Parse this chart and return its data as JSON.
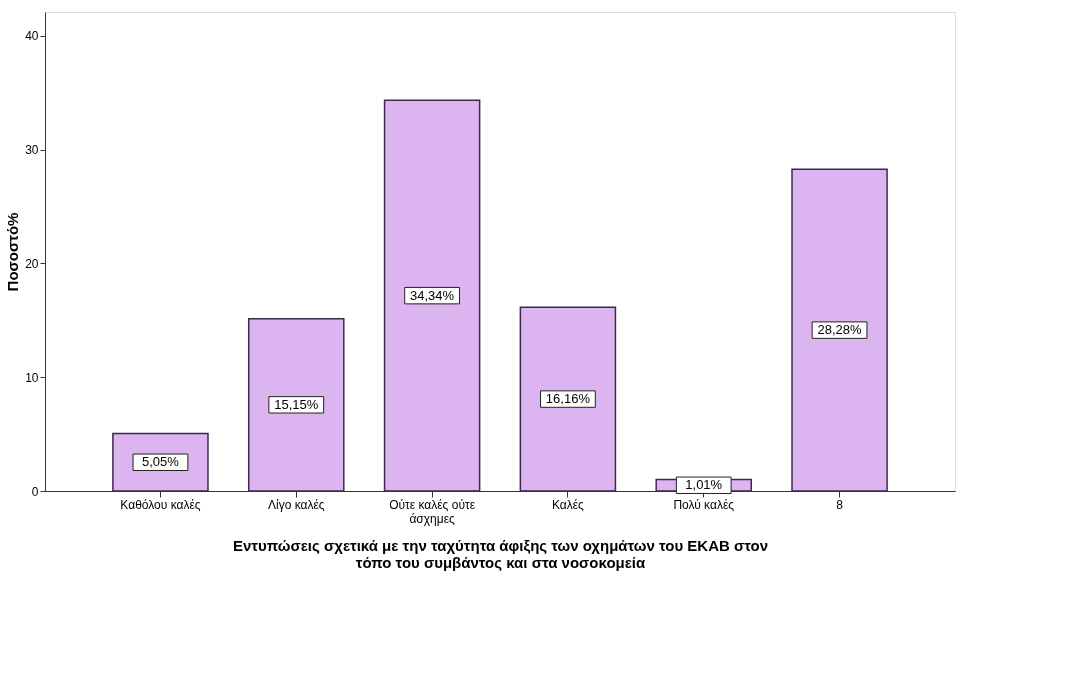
{
  "chart_data": {
    "type": "bar",
    "xlabel": "Εντυπώσεις σχετικά με την ταχύτητα άφιξης των οχημάτων του ΕΚΑΒ στον τόπο του συμβάντος και στα νοσοκομεία",
    "ylabel": "Ποσοστό%",
    "categories": [
      "Καθόλου καλές",
      "Λίγο καλές",
      "Ούτε καλές ούτε άσχημες",
      "Καλές",
      "Πολύ καλές",
      "8"
    ],
    "values": [
      5.05,
      15.15,
      34.34,
      16.16,
      1.01,
      28.28
    ],
    "value_labels": [
      "5,05%",
      "15,15%",
      "34,34%",
      "16,16%",
      "1,01%",
      "28,28%"
    ],
    "color": "#dcb5f0",
    "ylim": [
      0,
      42.1
    ],
    "yticks": [
      0,
      10,
      20,
      30,
      40
    ],
    "grid": false,
    "legend": false
  }
}
